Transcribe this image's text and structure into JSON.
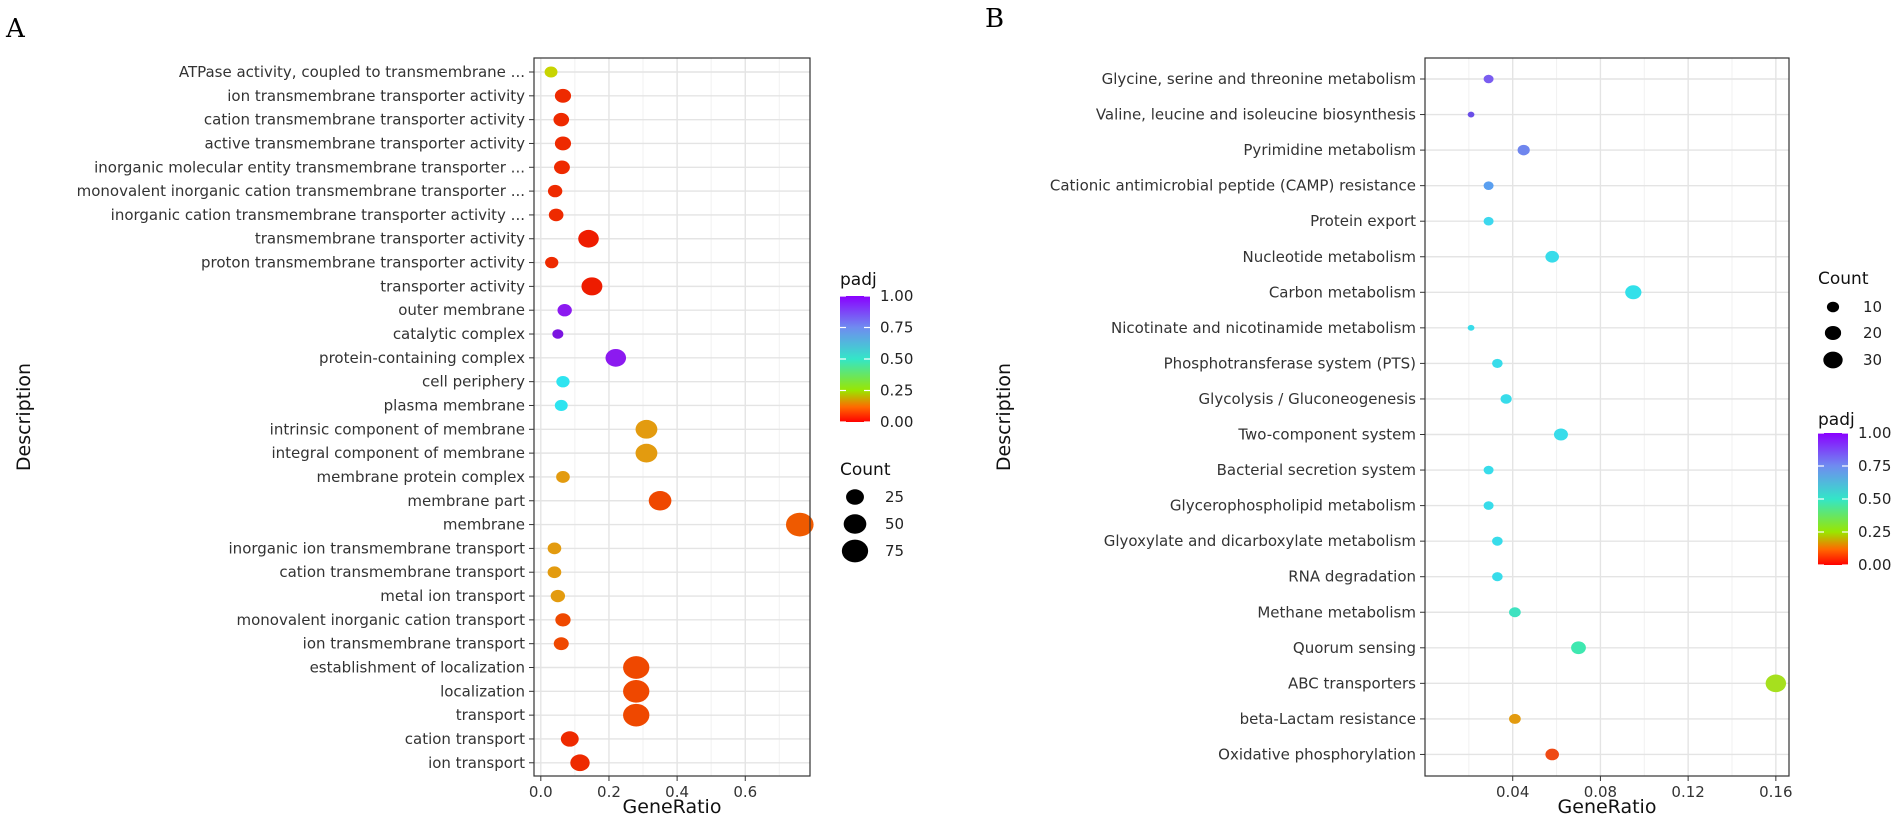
{
  "chart_data": [
    {
      "type": "scatter",
      "panel_label": "A",
      "xlabel": "GeneRatio",
      "ylabel": "Description",
      "xlim": [
        -0.02,
        0.79
      ],
      "xticks": [
        0.0,
        0.2,
        0.4,
        0.6
      ],
      "xtick_labels": [
        "0.0",
        "0.2",
        "0.4",
        "0.6"
      ],
      "color_legend": {
        "title": "padj",
        "ticks": [
          "1.00",
          "0.75",
          "0.50",
          "0.25",
          "0.00"
        ]
      },
      "size_legend": {
        "title": "Count",
        "ticks": [
          "25",
          "50",
          "75"
        ],
        "values": [
          25,
          50,
          75
        ]
      },
      "points": [
        {
          "label": "ATPase activity, coupled to transmembrane ...",
          "ratio": 0.03,
          "count": 8,
          "padj": 0.3,
          "color": "#c8d400"
        },
        {
          "label": "ion transmembrane transporter activity",
          "ratio": 0.065,
          "count": 18,
          "padj": 0.02,
          "color": "#ee2a00"
        },
        {
          "label": "cation transmembrane transporter activity",
          "ratio": 0.06,
          "count": 16,
          "padj": 0.02,
          "color": "#ee2a00"
        },
        {
          "label": "active transmembrane transporter activity",
          "ratio": 0.065,
          "count": 18,
          "padj": 0.02,
          "color": "#ee2a00"
        },
        {
          "label": "inorganic molecular entity transmembrane transporter ...",
          "ratio": 0.062,
          "count": 17,
          "padj": 0.02,
          "color": "#ee2a00"
        },
        {
          "label": "monovalent inorganic cation transmembrane transporter ...",
          "ratio": 0.042,
          "count": 12,
          "padj": 0.02,
          "color": "#ee2a00"
        },
        {
          "label": "inorganic cation transmembrane transporter activity ...",
          "ratio": 0.045,
          "count": 13,
          "padj": 0.02,
          "color": "#ee2a00"
        },
        {
          "label": "transmembrane transporter activity",
          "ratio": 0.14,
          "count": 38,
          "padj": 0.01,
          "color": "#ee1c00"
        },
        {
          "label": "proton transmembrane transporter activity",
          "ratio": 0.032,
          "count": 9,
          "padj": 0.02,
          "color": "#ee2a00"
        },
        {
          "label": "transporter activity",
          "ratio": 0.15,
          "count": 40,
          "padj": 0.01,
          "color": "#ee1c00"
        },
        {
          "label": "outer membrane",
          "ratio": 0.07,
          "count": 12,
          "padj": 1.0,
          "color": "#8c1af0"
        },
        {
          "label": "catalytic complex",
          "ratio": 0.05,
          "count": 4,
          "padj": 1.0,
          "color": "#7b14e0"
        },
        {
          "label": "protein-containing complex",
          "ratio": 0.22,
          "count": 38,
          "padj": 1.0,
          "color": "#8c1af0"
        },
        {
          "label": "cell periphery",
          "ratio": 0.065,
          "count": 9,
          "padj": 0.55,
          "color": "#2ee4f0"
        },
        {
          "label": "plasma membrane",
          "ratio": 0.06,
          "count": 8,
          "padj": 0.55,
          "color": "#2ee4f0"
        },
        {
          "label": "intrinsic component of membrane",
          "ratio": 0.31,
          "count": 45,
          "padj": 0.1,
          "color": "#e39b0f"
        },
        {
          "label": "integral component of membrane",
          "ratio": 0.31,
          "count": 45,
          "padj": 0.1,
          "color": "#e39b0f"
        },
        {
          "label": "membrane protein complex",
          "ratio": 0.065,
          "count": 10,
          "padj": 0.1,
          "color": "#e39b0f"
        },
        {
          "label": "membrane part",
          "ratio": 0.35,
          "count": 50,
          "padj": 0.03,
          "color": "#ef4800"
        },
        {
          "label": "membrane",
          "ratio": 0.76,
          "count": 85,
          "padj": 0.05,
          "color": "#ef5a00"
        },
        {
          "label": "inorganic ion transmembrane transport",
          "ratio": 0.04,
          "count": 10,
          "padj": 0.1,
          "color": "#e39b0f"
        },
        {
          "label": "cation transmembrane transport",
          "ratio": 0.04,
          "count": 10,
          "padj": 0.1,
          "color": "#e39b0f"
        },
        {
          "label": "metal ion transport",
          "ratio": 0.05,
          "count": 12,
          "padj": 0.1,
          "color": "#e39b0f"
        },
        {
          "label": "monovalent inorganic cation transport",
          "ratio": 0.065,
          "count": 15,
          "padj": 0.03,
          "color": "#ef4800"
        },
        {
          "label": "ion transmembrane transport",
          "ratio": 0.06,
          "count": 14,
          "padj": 0.03,
          "color": "#ef4800"
        },
        {
          "label": "establishment of localization",
          "ratio": 0.28,
          "count": 75,
          "padj": 0.03,
          "color": "#ef4800"
        },
        {
          "label": "localization",
          "ratio": 0.28,
          "count": 75,
          "padj": 0.03,
          "color": "#ef4800"
        },
        {
          "label": "transport",
          "ratio": 0.28,
          "count": 75,
          "padj": 0.03,
          "color": "#ef4800"
        },
        {
          "label": "cation transport",
          "ratio": 0.085,
          "count": 25,
          "padj": 0.02,
          "color": "#ee2a00"
        },
        {
          "label": "ion transport",
          "ratio": 0.115,
          "count": 32,
          "padj": 0.02,
          "color": "#ee2a00"
        }
      ]
    },
    {
      "type": "scatter",
      "panel_label": "B",
      "xlabel": "GeneRatio",
      "ylabel": "Description",
      "xlim": [
        0.0,
        0.166
      ],
      "xticks": [
        0.04,
        0.08,
        0.12,
        0.16
      ],
      "xtick_labels": [
        "0.04",
        "0.08",
        "0.12",
        "0.16"
      ],
      "color_legend": {
        "title": "padj",
        "ticks": [
          "1.00",
          "0.75",
          "0.50",
          "0.25",
          "0.00"
        ]
      },
      "size_legend": {
        "title": "Count",
        "ticks": [
          "10",
          "20",
          "30"
        ],
        "values": [
          10,
          20,
          30
        ]
      },
      "points": [
        {
          "label": "Glycine, serine and threonine metabolism",
          "ratio": 0.029,
          "count": 6,
          "padj": 0.9,
          "color": "#7a5df0"
        },
        {
          "label": "Valine, leucine and isoleucine biosynthesis",
          "ratio": 0.021,
          "count": 2,
          "padj": 0.9,
          "color": "#6a4ee8"
        },
        {
          "label": "Pyrimidine metabolism",
          "ratio": 0.045,
          "count": 10,
          "padj": 0.8,
          "color": "#6f86ee"
        },
        {
          "label": "Cationic antimicrobial peptide (CAMP) resistance",
          "ratio": 0.029,
          "count": 6,
          "padj": 0.7,
          "color": "#5a9ff0"
        },
        {
          "label": "Protein export",
          "ratio": 0.029,
          "count": 6,
          "padj": 0.55,
          "color": "#3dd8ee"
        },
        {
          "label": "Nucleotide metabolism",
          "ratio": 0.058,
          "count": 13,
          "padj": 0.55,
          "color": "#38dcea"
        },
        {
          "label": "Carbon metabolism",
          "ratio": 0.095,
          "count": 20,
          "padj": 0.55,
          "color": "#32e0ea"
        },
        {
          "label": "Nicotinate and nicotinamide metabolism",
          "ratio": 0.021,
          "count": 2,
          "padj": 0.55,
          "color": "#38dcea"
        },
        {
          "label": "Phosphotransferase system (PTS)",
          "ratio": 0.033,
          "count": 7,
          "padj": 0.55,
          "color": "#38dcea"
        },
        {
          "label": "Glycolysis / Gluconeogenesis",
          "ratio": 0.037,
          "count": 8,
          "padj": 0.55,
          "color": "#38dcea"
        },
        {
          "label": "Two-component system",
          "ratio": 0.062,
          "count": 14,
          "padj": 0.55,
          "color": "#38dcea"
        },
        {
          "label": "Bacterial secretion system",
          "ratio": 0.029,
          "count": 6,
          "padj": 0.55,
          "color": "#38dcea"
        },
        {
          "label": "Glycerophospholipid metabolism",
          "ratio": 0.029,
          "count": 6,
          "padj": 0.55,
          "color": "#38dcea"
        },
        {
          "label": "Glyoxylate and dicarboxylate metabolism",
          "ratio": 0.033,
          "count": 7,
          "padj": 0.55,
          "color": "#38dcea"
        },
        {
          "label": "RNA degradation",
          "ratio": 0.033,
          "count": 7,
          "padj": 0.55,
          "color": "#38dcea"
        },
        {
          "label": "Methane metabolism",
          "ratio": 0.041,
          "count": 9,
          "padj": 0.45,
          "color": "#3ee2c0"
        },
        {
          "label": "Quorum sensing",
          "ratio": 0.07,
          "count": 16,
          "padj": 0.45,
          "color": "#3ee8b0"
        },
        {
          "label": "ABC transporters",
          "ratio": 0.16,
          "count": 34,
          "padj": 0.2,
          "color": "#a6e01e"
        },
        {
          "label": "beta-Lactam resistance",
          "ratio": 0.041,
          "count": 9,
          "padj": 0.1,
          "color": "#e39b0f"
        },
        {
          "label": "Oxidative phosphorylation",
          "ratio": 0.058,
          "count": 13,
          "padj": 0.02,
          "color": "#ef4a14"
        }
      ]
    }
  ]
}
